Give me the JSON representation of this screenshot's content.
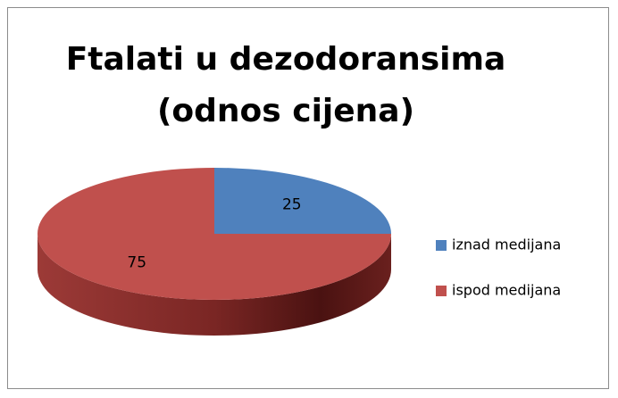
{
  "chart_data": {
    "type": "pie",
    "title": "Ftalati u dezodoransima (odnos cijena)",
    "categories": [
      "iznad medijana",
      "ispod medijana"
    ],
    "values": [
      25,
      75
    ],
    "colors": [
      "#4f81bd",
      "#c0504d"
    ],
    "legend": "right"
  }
}
